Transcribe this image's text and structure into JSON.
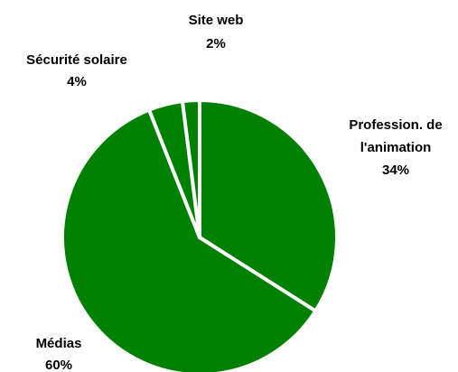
{
  "chart_data": {
    "type": "pie",
    "categories": [
      "Profession. de l'animation",
      "Médias",
      "Sécurité solaire",
      "Site web"
    ],
    "values": [
      34,
      60,
      4,
      2
    ],
    "value_labels": [
      "34%",
      "60%",
      "4%",
      "2%"
    ],
    "color": "#008000"
  }
}
